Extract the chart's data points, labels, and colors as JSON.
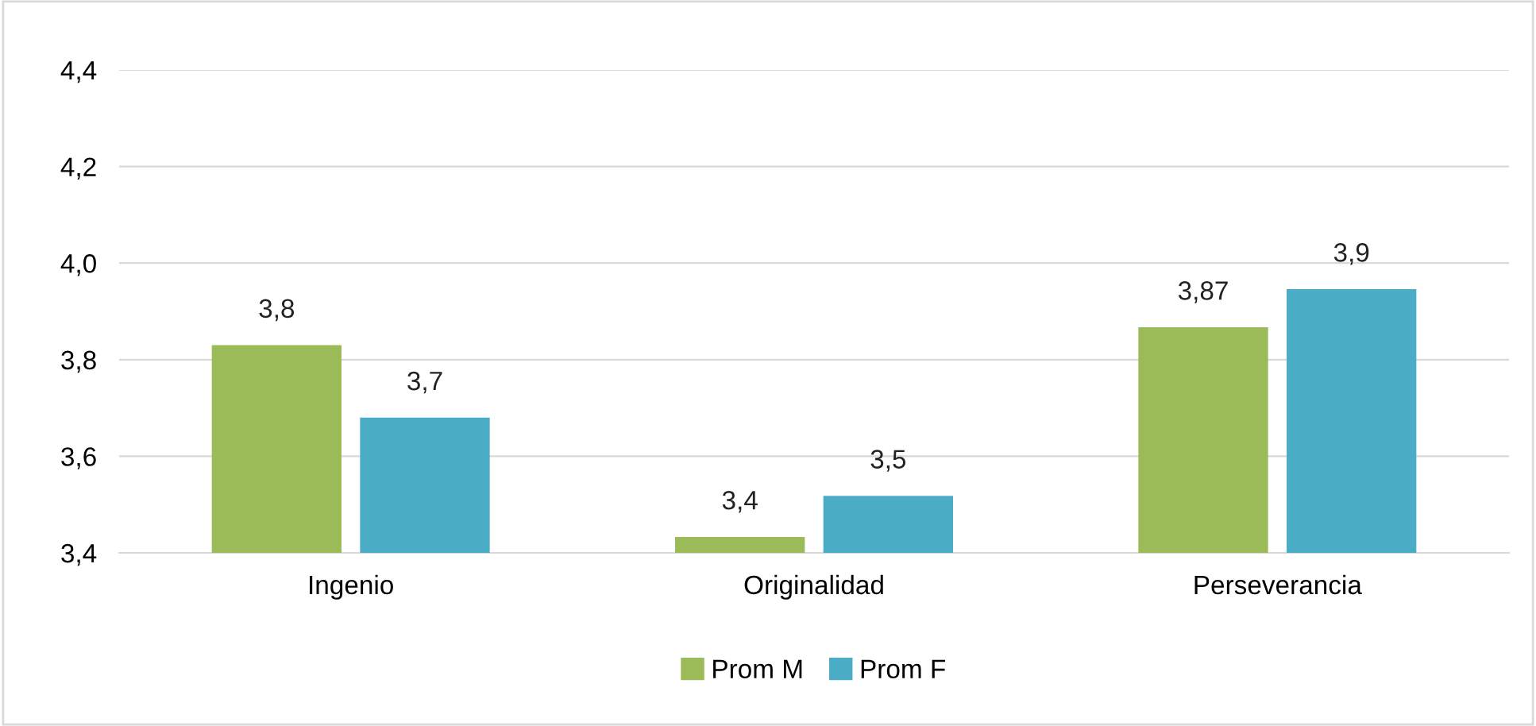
{
  "chart_data": {
    "type": "bar",
    "categories": [
      "Ingenio",
      "Originalidad",
      "Perseverancia"
    ],
    "series": [
      {
        "name": "Prom M",
        "color": "#9bbb59",
        "values": [
          3.83,
          3.433,
          3.867
        ],
        "value_labels": [
          "3,8",
          "3,4",
          "3,87"
        ]
      },
      {
        "name": "Prom F",
        "color": "#4bacc6",
        "values": [
          3.68,
          3.518,
          3.946
        ],
        "value_labels": [
          "3,7",
          "3,5",
          "3,9"
        ]
      }
    ],
    "ylim": [
      3.4,
      4.4
    ],
    "yticks": [
      {
        "value": 3.4,
        "label": "3,4"
      },
      {
        "value": 3.6,
        "label": "3,6"
      },
      {
        "value": 3.8,
        "label": "3,8"
      },
      {
        "value": 4.0,
        "label": "4,0"
      },
      {
        "value": 4.2,
        "label": "4,2"
      },
      {
        "value": 4.4,
        "label": "4,4"
      }
    ],
    "grid": "y",
    "legend": "bottom"
  }
}
